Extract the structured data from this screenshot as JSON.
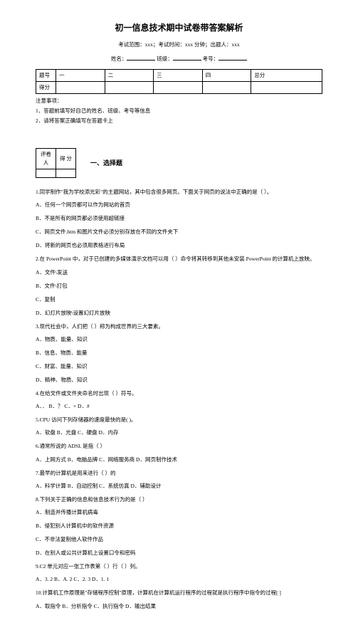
{
  "title": "初一信息技术期中试卷带答案解析",
  "examInfo": {
    "range": "考试范围：xxx；考试时间：xxx 分钟；出题人：xxx"
  },
  "studentInfo": {
    "name": "姓名：",
    "class": "班级：",
    "id": "考号："
  },
  "scoreTable": {
    "rowLabels": [
      "题号",
      "得分"
    ],
    "cols": [
      "一",
      "二",
      "三",
      "四",
      "总分"
    ]
  },
  "notesHeader": "注意事项：",
  "notes": [
    "1．答题前填写好自己的姓名、班级、考号等信息",
    "2．请将答案正确填写在答题卡上"
  ],
  "smallTable": {
    "h1": "评卷人",
    "h2": "得  分"
  },
  "sectionTitle": "一、选择题",
  "lines": [
    "1.同学制作\"我为学校添光彩\"的主题网站，其中包含很多网页。下面关于网页的说法中正确的是（    ）。",
    "A．任何一个网页都可以作为网站的首页",
    "B．不是所有的网页都必须使用超链接",
    "C．网页文件.htm 和图片文件必须分别存放在不同的文件夹下",
    "D．将新的网页也必须用表格进行布局",
    "2.在 PowerPoint 中，对于已创建的多媒体演示文档可以用（    ）命令将其转移到其他未安装 PowerPoint 的计算机上放映。",
    "A．文件\\发送",
    "B．文件\\打包",
    "C．复制",
    "D．幻灯片放映\\设置幻灯片放映",
    "3.现代社会中，人们把（    ）称为构成世界的三大要素。",
    "A．物质、能量、知识",
    "B．信息、物质、能量",
    "C．财富、能量、知识",
    "D．精神、物质、知识",
    "4.在给文件或文件夹命名时出现（    ）符号。",
    "A．．     B．？     C．+     D．#",
    "5.CPU 访问下列存储器的速度最快的是(   )。",
    "A．软盘     B．光盘     C．硬盘     D．内存",
    "6.通常所说的 ADSL 是指（    ）",
    "A．上网方式     B．电脑品牌     C．网络服务商     D．网页制作技术",
    "7.最早的计算机是用来进行（    ）的",
    "A．科学计算     B．自动控制     C．系统仿真     D．辅助设计",
    "8.下列关于正确的信息和信息技术行为的是（    ）",
    "A．制造并传播计算机病毒",
    "B．侵犯别人计算机中的软件资源",
    "C．不非法复制他人软件作品",
    "D．在别人或公共计算机上设置口令和密码",
    "9.C2 单元对应一张工作表第（    ）行（    ）列。",
    "A．3. 2     B．A. 2     C．2. 3     D．1. 1",
    "10.计算机工作原理是\"存储程序控制\"原理，计算机在计算机运行程序的过程就是执行程序中指令的过程[    ]",
    "A．取指令     B．分析指令     C．执行指令     D．输出结果"
  ]
}
